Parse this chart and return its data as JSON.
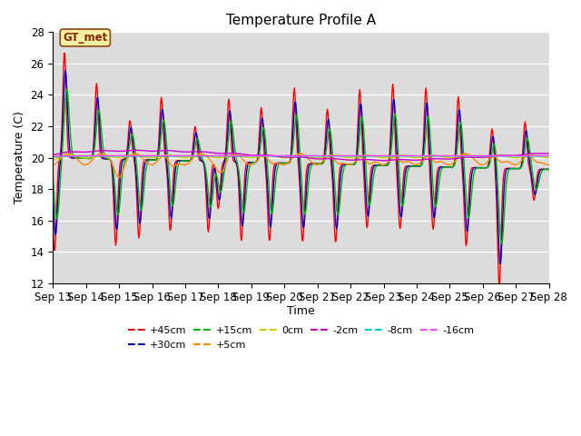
{
  "title": "Temperature Profile A",
  "xlabel": "Time",
  "ylabel": "Temperature (C)",
  "ylim": [
    12,
    28
  ],
  "start_day": 13,
  "end_day": 28,
  "background_color": "#dcdcdc",
  "series": {
    "+45cm": {
      "color": "#ff0000",
      "lw": 1.0
    },
    "+30cm": {
      "color": "#0000cc",
      "lw": 1.0
    },
    "+15cm": {
      "color": "#00bb00",
      "lw": 1.0
    },
    "+5cm": {
      "color": "#ff8800",
      "lw": 1.0
    },
    "0cm": {
      "color": "#cccc00",
      "lw": 1.0
    },
    "-2cm": {
      "color": "#cc00cc",
      "lw": 1.0
    },
    "-8cm": {
      "color": "#00cccc",
      "lw": 1.0
    },
    "-16cm": {
      "color": "#ff44ff",
      "lw": 1.0
    }
  },
  "annotation_text": "GT_met",
  "legend_order": [
    "+45cm",
    "+30cm",
    "+15cm",
    "+5cm",
    "0cm",
    "-2cm",
    "-8cm",
    "-16cm"
  ]
}
